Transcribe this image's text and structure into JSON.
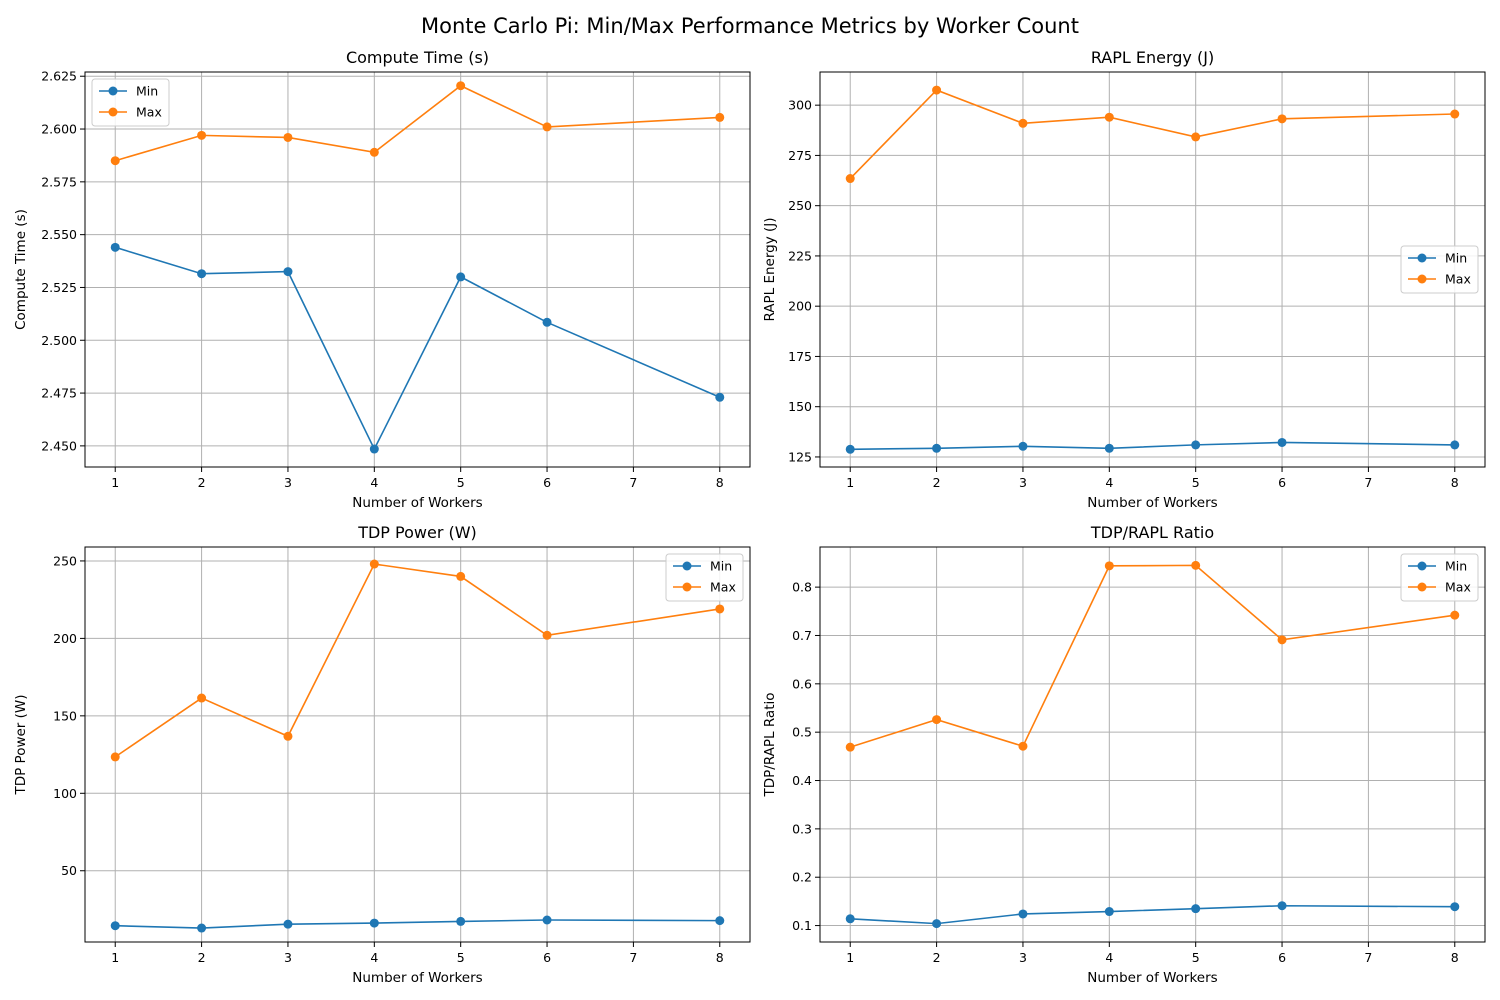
{
  "figure": {
    "suptitle": "Monte Carlo Pi: Min/Max Performance Metrics by Worker Count"
  },
  "colors": {
    "min": "#1f77b4",
    "max": "#ff7f0e",
    "grid": "#b0b0b0"
  },
  "chart_data": [
    {
      "type": "line",
      "title": "Compute Time (s)",
      "xlabel": "Number of Workers",
      "ylabel": "Compute Time (s)",
      "x": [
        1,
        2,
        3,
        4,
        5,
        6,
        8
      ],
      "xticks": [
        1,
        2,
        3,
        4,
        5,
        6,
        7,
        8
      ],
      "xlim": [
        0.65,
        8.35
      ],
      "ylim": [
        2.44,
        2.627
      ],
      "yticks": [
        "2.450",
        "2.475",
        "2.500",
        "2.525",
        "2.550",
        "2.575",
        "2.600",
        "2.625"
      ],
      "grid": true,
      "legend": "upper left",
      "series": [
        {
          "name": "Min",
          "values": [
            2.544,
            2.5315,
            2.5325,
            2.4485,
            2.53,
            2.5085,
            2.473
          ]
        },
        {
          "name": "Max",
          "values": [
            2.585,
            2.597,
            2.596,
            2.589,
            2.6205,
            2.601,
            2.6055
          ]
        }
      ]
    },
    {
      "type": "line",
      "title": "RAPL Energy (J)",
      "xlabel": "Number of Workers",
      "ylabel": "RAPL Energy (J)",
      "x": [
        1,
        2,
        3,
        4,
        5,
        6,
        8
      ],
      "xticks": [
        1,
        2,
        3,
        4,
        5,
        6,
        7,
        8
      ],
      "xlim": [
        0.65,
        8.35
      ],
      "ylim": [
        120,
        316.5
      ],
      "yticks": [
        "125",
        "150",
        "175",
        "200",
        "225",
        "250",
        "275",
        "300"
      ],
      "grid": true,
      "legend": "center right",
      "series": [
        {
          "name": "Min",
          "values": [
            128.8,
            129.3,
            130.3,
            129.3,
            131,
            132.2,
            131
          ]
        },
        {
          "name": "Max",
          "values": [
            263.5,
            307.5,
            291,
            294,
            284.2,
            293.2,
            295.6
          ]
        }
      ]
    },
    {
      "type": "line",
      "title": "TDP Power (W)",
      "xlabel": "Number of Workers",
      "ylabel": "TDP Power (W)",
      "x": [
        1,
        2,
        3,
        4,
        5,
        6,
        8
      ],
      "xticks": [
        1,
        2,
        3,
        4,
        5,
        6,
        7,
        8
      ],
      "xlim": [
        0.65,
        8.35
      ],
      "ylim": [
        4,
        259
      ],
      "yticks": [
        "50",
        "100",
        "150",
        "200",
        "250"
      ],
      "grid": true,
      "legend": "upper right",
      "series": [
        {
          "name": "Min",
          "values": [
            14.5,
            13,
            15.5,
            16.2,
            17.3,
            18.2,
            17.8
          ]
        },
        {
          "name": "Max",
          "values": [
            123.5,
            161.5,
            136.8,
            248,
            240,
            202,
            219
          ]
        }
      ]
    },
    {
      "type": "line",
      "title": "TDP/RAPL Ratio",
      "xlabel": "Number of Workers",
      "ylabel": "TDP/RAPL Ratio",
      "x": [
        1,
        2,
        3,
        4,
        5,
        6,
        8
      ],
      "xticks": [
        1,
        2,
        3,
        4,
        5,
        6,
        7,
        8
      ],
      "xlim": [
        0.65,
        8.35
      ],
      "ylim": [
        0.066,
        0.883
      ],
      "yticks": [
        "0.1",
        "0.2",
        "0.3",
        "0.4",
        "0.5",
        "0.6",
        "0.7",
        "0.8"
      ],
      "grid": true,
      "legend": "upper right",
      "series": [
        {
          "name": "Min",
          "values": [
            0.114,
            0.104,
            0.124,
            0.129,
            0.135,
            0.141,
            0.139
          ]
        },
        {
          "name": "Max",
          "values": [
            0.469,
            0.526,
            0.471,
            0.844,
            0.845,
            0.691,
            0.742
          ]
        }
      ]
    }
  ]
}
